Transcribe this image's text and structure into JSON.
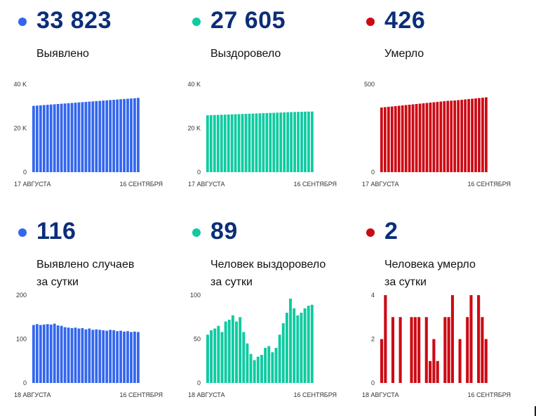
{
  "colors": {
    "blue": "#3366ee",
    "teal": "#0ecba1",
    "red": "#cc0a14",
    "dark": "#0b2e7a"
  },
  "panels": [
    {
      "value": "33 823",
      "label": [
        "Выявлено"
      ],
      "color": "#3366ee"
    },
    {
      "value": "27 605",
      "label": [
        "Выздоровело"
      ],
      "color": "#0ecba1"
    },
    {
      "value": "426",
      "label": [
        "Умерло"
      ],
      "color": "#cc0a14"
    },
    {
      "value": "116",
      "label": [
        "Выявлено случаев",
        "за сутки"
      ],
      "color": "#3366ee"
    },
    {
      "value": "89",
      "label": [
        "Человек выздоровело",
        "за сутки"
      ],
      "color": "#0ecba1"
    },
    {
      "value": "2",
      "label": [
        "Человека умерло",
        "за сутки"
      ],
      "color": "#cc0a14"
    }
  ],
  "chart_data": [
    {
      "type": "bar",
      "color": "#3366ee",
      "ylim": [
        0,
        40000
      ],
      "yticks": [
        "0",
        "20 K",
        "40 K"
      ],
      "ytick_values": [
        0,
        20000,
        40000
      ],
      "xlabels": [
        "17 АВГУСТА",
        "16 СЕНТЯБРЯ"
      ],
      "values": [
        30200,
        30320,
        30440,
        30560,
        30680,
        30800,
        30920,
        31040,
        31160,
        31280,
        31400,
        31520,
        31640,
        31760,
        31880,
        32000,
        32120,
        32240,
        32360,
        32480,
        32600,
        32720,
        32840,
        32960,
        33080,
        33200,
        33320,
        33440,
        33560,
        33680,
        33823
      ]
    },
    {
      "type": "bar",
      "color": "#0ecba1",
      "ylim": [
        0,
        40000
      ],
      "yticks": [
        "0",
        "20 K",
        "40 K"
      ],
      "ytick_values": [
        0,
        20000,
        40000
      ],
      "xlabels": [
        "17 АВГУСТА",
        "16 СЕНТЯБРЯ"
      ],
      "values": [
        25900,
        25960,
        26020,
        26080,
        26140,
        26200,
        26260,
        26320,
        26380,
        26440,
        26500,
        26560,
        26620,
        26680,
        26740,
        26800,
        26860,
        26920,
        26980,
        27040,
        27100,
        27160,
        27220,
        27280,
        27340,
        27400,
        27460,
        27520,
        27560,
        27590,
        27605
      ]
    },
    {
      "type": "bar",
      "color": "#cc0a14",
      "ylim": [
        0,
        500
      ],
      "yticks": [
        "0",
        "500"
      ],
      "ytick_values": [
        0,
        500
      ],
      "xlabels": [
        "17 АВГУСТА",
        "16 СЕНТЯБРЯ"
      ],
      "values": [
        368,
        370,
        372,
        374,
        376,
        378,
        380,
        382,
        384,
        386,
        388,
        390,
        392,
        394,
        396,
        398,
        400,
        402,
        404,
        406,
        407,
        408,
        410,
        412,
        414,
        416,
        418,
        420,
        422,
        424,
        426
      ]
    },
    {
      "type": "bar",
      "color": "#3366ee",
      "ylim": [
        0,
        200
      ],
      "yticks": [
        "0",
        "100",
        "200"
      ],
      "ytick_values": [
        0,
        100,
        200
      ],
      "xlabels": [
        "18 АВГУСТА",
        "16 СЕНТЯБРЯ"
      ],
      "values": [
        132,
        134,
        132,
        133,
        134,
        133,
        135,
        131,
        130,
        127,
        126,
        125,
        126,
        124,
        125,
        122,
        124,
        121,
        122,
        121,
        120,
        119,
        121,
        120,
        118,
        119,
        117,
        118,
        116,
        117,
        116
      ]
    },
    {
      "type": "bar",
      "color": "#0ecba1",
      "ylim": [
        0,
        100
      ],
      "yticks": [
        "0",
        "50",
        "100"
      ],
      "ytick_values": [
        0,
        50,
        100
      ],
      "xlabels": [
        "18 АВГУСТА",
        "16 СЕНТЯБРЯ"
      ],
      "values": [
        55,
        60,
        62,
        65,
        58,
        70,
        72,
        77,
        70,
        75,
        58,
        45,
        33,
        26,
        30,
        32,
        40,
        42,
        35,
        40,
        55,
        68,
        80,
        96,
        85,
        77,
        80,
        85,
        88,
        89
      ]
    },
    {
      "type": "bar",
      "color": "#cc0a14",
      "ylim": [
        0,
        4
      ],
      "yticks": [
        "0",
        "2",
        "4"
      ],
      "ytick_values": [
        0,
        2,
        4
      ],
      "xlabels": [
        "18 АВГУСТА",
        "16 СЕНТЯБРЯ"
      ],
      "values": [
        2,
        4,
        0,
        3,
        0,
        3,
        0,
        0,
        3,
        3,
        3,
        0,
        3,
        1,
        2,
        1,
        0,
        3,
        3,
        4,
        0,
        2,
        0,
        3,
        4,
        0,
        4,
        3,
        2
      ]
    }
  ]
}
